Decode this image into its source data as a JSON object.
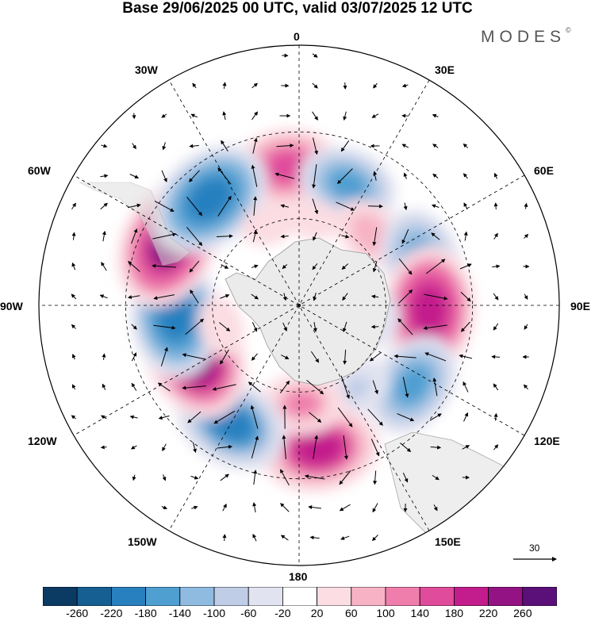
{
  "header": {
    "title": "Base 29/06/2025 00 UTC, valid 03/07/2025 12 UTC",
    "brand": "MODES",
    "brand_mark": "©"
  },
  "map": {
    "projection": "south-polar-stereographic",
    "longitude_labels": [
      "0",
      "30E",
      "60E",
      "90E",
      "120E",
      "150E",
      "180",
      "150W",
      "120W",
      "90W",
      "60W",
      "30W"
    ],
    "reference_vector": "30",
    "anomaly_centers": [
      {
        "lon": -5,
        "lat": -42,
        "value": 180
      },
      {
        "lon": 22,
        "lat": -45,
        "value": -160
      },
      {
        "lon": 45,
        "lat": -55,
        "value": 100
      },
      {
        "lon": 70,
        "lat": -45,
        "value": -180
      },
      {
        "lon": 92,
        "lat": -45,
        "value": 240
      },
      {
        "lon": 125,
        "lat": -42,
        "value": -180
      },
      {
        "lon": 145,
        "lat": -55,
        "value": -80
      },
      {
        "lon": 172,
        "lat": -40,
        "value": 220
      },
      {
        "lon": 178,
        "lat": -56,
        "value": 120
      },
      {
        "lon": -150,
        "lat": -43,
        "value": -210
      },
      {
        "lon": -115,
        "lat": -50,
        "value": 260
      },
      {
        "lon": -95,
        "lat": -47,
        "value": -230
      },
      {
        "lon": -65,
        "lat": -40,
        "value": 250
      },
      {
        "lon": -40,
        "lat": -42,
        "value": -240
      },
      {
        "lon": -20,
        "lat": -60,
        "value": 40
      },
      {
        "lon": 10,
        "lat": -60,
        "value": 30
      },
      {
        "lon": 100,
        "lat": -62,
        "value": -40
      },
      {
        "lon": -105,
        "lat": -62,
        "value": 50
      }
    ]
  },
  "colorbar": {
    "ticks": [
      "-260",
      "-220",
      "-180",
      "-140",
      "-100",
      "-60",
      "-20",
      "20",
      "60",
      "100",
      "140",
      "180",
      "220",
      "260"
    ],
    "colors": [
      "#0b3a63",
      "#155f93",
      "#2880bf",
      "#4f9fd1",
      "#8fbbe0",
      "#bfcde6",
      "#e2e3f0",
      "#ffffff",
      "#fbdde3",
      "#f7b3c5",
      "#ef7eac",
      "#e04b9b",
      "#c31c8c",
      "#931284",
      "#5b0f78"
    ]
  }
}
